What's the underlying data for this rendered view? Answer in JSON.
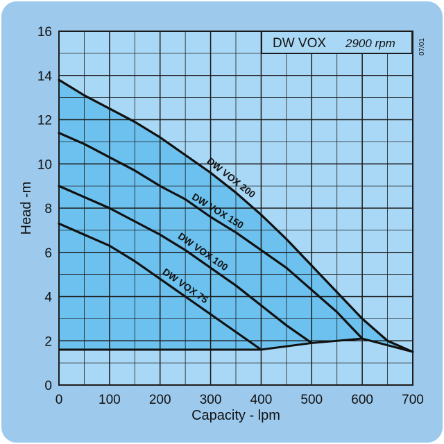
{
  "colors": {
    "frame": "#9dc9ec",
    "plot_background": "#a9d8f6",
    "envelope_fill": "#6cc1ef",
    "grid_line": "#1c1c1c",
    "curve_line": "#111111"
  },
  "title_box": {
    "model": "DW VOX",
    "speed": "2900 rpm"
  },
  "revision_code": "07/01",
  "chart_data": {
    "type": "line",
    "xlabel": "Capacity - lpm",
    "ylabel": "Head -m",
    "xlim": [
      0,
      700
    ],
    "ylim": [
      0,
      16
    ],
    "x_ticks": [
      "0",
      "100",
      "200",
      "300",
      "400",
      "500",
      "600",
      "700"
    ],
    "y_ticks": [
      "0",
      "2",
      "4",
      "6",
      "8",
      "10",
      "12",
      "14",
      "16"
    ],
    "grid": true,
    "series": [
      {
        "name": "DW VOX 75",
        "x": [
          0,
          50,
          100,
          150,
          200,
          250,
          300,
          350,
          400
        ],
        "y": [
          7.3,
          6.8,
          6.3,
          5.6,
          4.8,
          4.0,
          3.2,
          2.4,
          1.6
        ]
      },
      {
        "name": "DW VOX 100",
        "x": [
          0,
          50,
          100,
          150,
          200,
          250,
          300,
          350,
          400,
          450,
          500
        ],
        "y": [
          9.0,
          8.5,
          8.0,
          7.4,
          6.8,
          6.1,
          5.3,
          4.5,
          3.6,
          2.7,
          1.9
        ]
      },
      {
        "name": "DW VOX 150",
        "x": [
          0,
          50,
          100,
          150,
          200,
          250,
          300,
          350,
          400,
          450,
          500,
          550,
          600
        ],
        "y": [
          11.4,
          10.9,
          10.3,
          9.7,
          9.0,
          8.4,
          7.6,
          6.9,
          6.1,
          5.3,
          4.3,
          3.3,
          2.1
        ]
      },
      {
        "name": "DW VOX 200",
        "x": [
          0,
          50,
          100,
          150,
          200,
          250,
          300,
          350,
          400,
          450,
          500,
          550,
          600,
          650,
          700
        ],
        "y": [
          13.8,
          13.1,
          12.5,
          11.9,
          11.2,
          10.4,
          9.6,
          8.7,
          7.7,
          6.6,
          5.4,
          4.2,
          3.0,
          2.0,
          1.5
        ]
      }
    ],
    "envelope": {
      "x": [
        0,
        400,
        500,
        600,
        700
      ],
      "y": [
        1.6,
        1.6,
        1.9,
        2.1,
        1.5
      ]
    }
  }
}
